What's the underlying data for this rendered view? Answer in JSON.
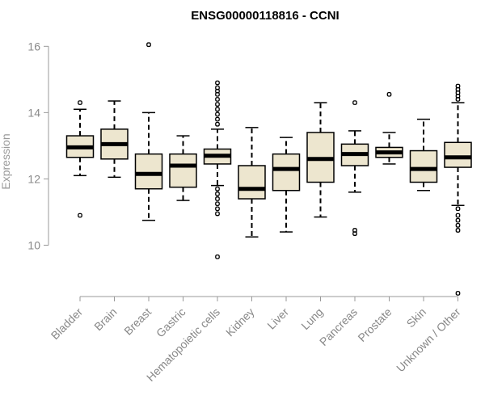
{
  "chart_data": {
    "type": "boxplot",
    "title": "ENSG00000118816 - CCNI",
    "ylabel": "Expression",
    "xlabel": "",
    "ylim": [
      8.5,
      16.3
    ],
    "yticks": [
      10,
      12,
      14,
      16
    ],
    "grid": false,
    "colors": {
      "box_fill": "#ede6cf",
      "stroke": "#000000",
      "axis": "#999999"
    },
    "categories": [
      "Bladder",
      "Brain",
      "Breast",
      "Gastric",
      "Hematopoietic cells",
      "Kidney",
      "Liver",
      "Lung",
      "Pancreas",
      "Prostate",
      "Skin",
      "Unknown / Other"
    ],
    "boxes": [
      {
        "name": "Bladder",
        "min": 12.1,
        "q1": 12.65,
        "median": 12.95,
        "q3": 13.3,
        "max": 14.1,
        "outliers": [
          14.3,
          10.9
        ]
      },
      {
        "name": "Brain",
        "min": 12.05,
        "q1": 12.6,
        "median": 13.05,
        "q3": 13.5,
        "max": 14.35,
        "outliers": []
      },
      {
        "name": "Breast",
        "min": 10.75,
        "q1": 11.7,
        "median": 12.15,
        "q3": 12.75,
        "max": 14.0,
        "outliers": [
          16.05
        ]
      },
      {
        "name": "Gastric",
        "min": 11.35,
        "q1": 11.75,
        "median": 12.4,
        "q3": 12.75,
        "max": 13.3,
        "outliers": []
      },
      {
        "name": "Hematopoietic cells",
        "min": 11.8,
        "q1": 12.45,
        "median": 12.7,
        "q3": 12.9,
        "max": 13.5,
        "outliers": [
          14.9,
          14.75,
          14.65,
          14.55,
          14.4,
          14.25,
          14.1,
          13.95,
          13.8,
          13.65,
          11.7,
          11.55,
          11.4,
          11.25,
          11.1,
          10.95,
          9.65
        ]
      },
      {
        "name": "Kidney",
        "min": 10.25,
        "q1": 11.4,
        "median": 11.7,
        "q3": 12.4,
        "max": 13.55,
        "outliers": []
      },
      {
        "name": "Liver",
        "min": 10.4,
        "q1": 11.65,
        "median": 12.3,
        "q3": 12.75,
        "max": 13.25,
        "outliers": []
      },
      {
        "name": "Lung",
        "min": 10.85,
        "q1": 11.9,
        "median": 12.6,
        "q3": 13.4,
        "max": 14.3,
        "outliers": []
      },
      {
        "name": "Pancreas",
        "min": 11.6,
        "q1": 12.4,
        "median": 12.75,
        "q3": 13.05,
        "max": 13.45,
        "outliers": [
          14.3,
          10.45,
          10.35
        ]
      },
      {
        "name": "Prostate",
        "min": 12.45,
        "q1": 12.65,
        "median": 12.8,
        "q3": 12.95,
        "max": 13.4,
        "outliers": [
          14.55
        ]
      },
      {
        "name": "Skin",
        "min": 11.65,
        "q1": 11.9,
        "median": 12.3,
        "q3": 12.85,
        "max": 13.8,
        "outliers": []
      },
      {
        "name": "Unknown / Other",
        "min": 11.2,
        "q1": 12.35,
        "median": 12.65,
        "q3": 13.1,
        "max": 14.3,
        "outliers": [
          14.8,
          14.7,
          14.6,
          14.5,
          14.4,
          11.1,
          10.9,
          10.75,
          10.6,
          10.45,
          8.55
        ]
      }
    ]
  }
}
